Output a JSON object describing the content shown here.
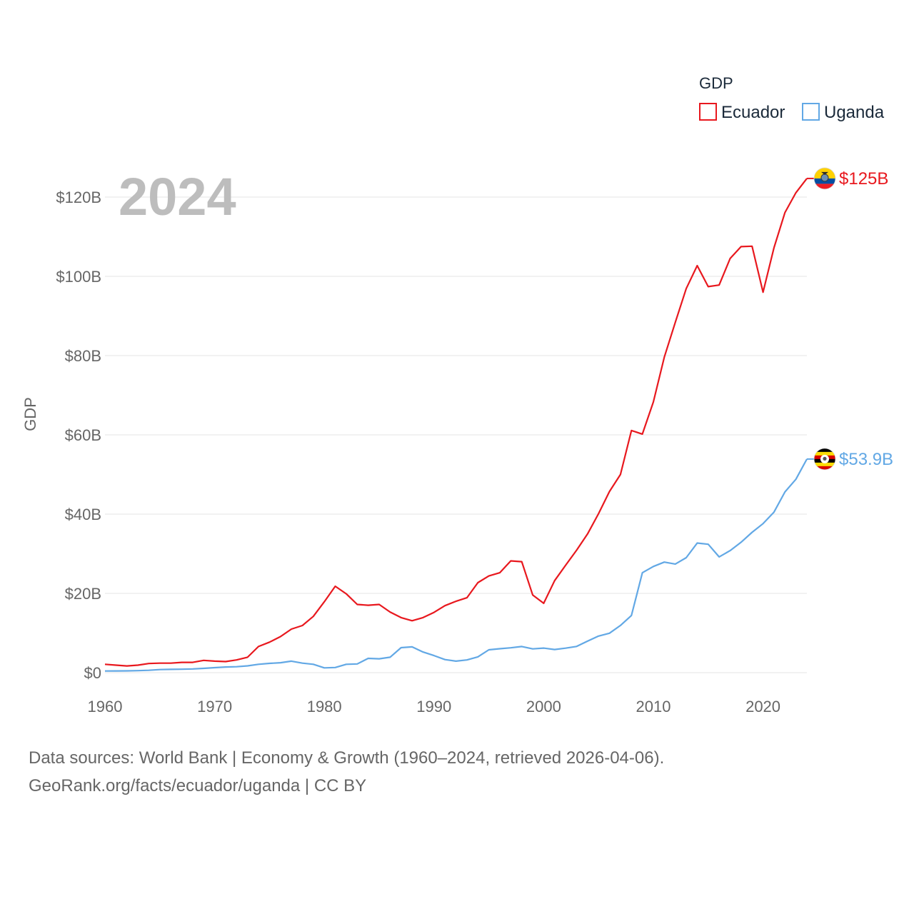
{
  "chart_data": {
    "type": "line",
    "ylabel": "GDP",
    "legend_title": "GDP",
    "current_year": "2024",
    "ylim": [
      0,
      130
    ],
    "y_ticks": [
      {
        "value": 0,
        "label": "$0"
      },
      {
        "value": 20,
        "label": "$20B"
      },
      {
        "value": 40,
        "label": "$40B"
      },
      {
        "value": 60,
        "label": "$60B"
      },
      {
        "value": 80,
        "label": "$80B"
      },
      {
        "value": 100,
        "label": "$100B"
      },
      {
        "value": 120,
        "label": "$120B"
      }
    ],
    "x_ticks": [
      {
        "value": 1960,
        "label": "1960"
      },
      {
        "value": 1970,
        "label": "1970"
      },
      {
        "value": 1980,
        "label": "1980"
      },
      {
        "value": 1990,
        "label": "1990"
      },
      {
        "value": 2000,
        "label": "2000"
      },
      {
        "value": 2010,
        "label": "2010"
      },
      {
        "value": 2020,
        "label": "2020"
      }
    ],
    "x_start": 1960,
    "x_end": 2024,
    "series": [
      {
        "name": "Ecuador",
        "color": "#e8181e",
        "end_label": "$125B",
        "flag": "ecuador-flag-icon",
        "values": [
          2.1,
          1.9,
          1.7,
          1.9,
          2.3,
          2.4,
          2.4,
          2.6,
          2.6,
          3.1,
          2.9,
          2.8,
          3.2,
          3.9,
          6.6,
          7.7,
          9.1,
          11.0,
          11.9,
          14.2,
          17.9,
          21.8,
          19.9,
          17.2,
          17.0,
          17.2,
          15.3,
          13.9,
          13.1,
          13.9,
          15.2,
          16.9,
          18.0,
          18.9,
          22.7,
          24.4,
          25.2,
          28.2,
          28.0,
          19.6,
          17.5,
          23.2,
          27.1,
          30.9,
          35.0,
          40.1,
          45.7,
          50.0,
          61.1,
          60.2,
          68.3,
          79.6,
          88.4,
          96.9,
          102.7,
          97.4,
          97.8,
          104.5,
          107.5,
          107.6,
          96.0,
          107.2,
          116.1,
          121.1,
          124.7
        ]
      },
      {
        "name": "Uganda",
        "color": "#62a8e5",
        "end_label": "$53.9B",
        "flag": "uganda-flag-icon",
        "values": [
          0.42,
          0.44,
          0.45,
          0.51,
          0.59,
          0.77,
          0.82,
          0.87,
          0.93,
          1.08,
          1.26,
          1.42,
          1.49,
          1.71,
          2.1,
          2.35,
          2.5,
          2.9,
          2.4,
          2.1,
          1.2,
          1.3,
          2.1,
          2.2,
          3.6,
          3.5,
          3.9,
          6.3,
          6.5,
          5.2,
          4.3,
          3.3,
          2.9,
          3.2,
          3.99,
          5.76,
          6.04,
          6.27,
          6.6,
          6.0,
          6.19,
          5.84,
          6.18,
          6.61,
          7.94,
          9.23,
          9.94,
          11.91,
          14.44,
          25.2,
          26.8,
          27.9,
          27.4,
          29.0,
          32.7,
          32.4,
          29.2,
          30.8,
          32.9,
          35.4,
          37.6,
          40.5,
          45.6,
          48.8,
          53.9
        ]
      }
    ]
  },
  "footer": {
    "line1": "Data sources: World Bank | Economy & Growth (1960–2024, retrieved 2026-04-06).",
    "line2": "GeoRank.org/facts/ecuador/uganda | CC BY"
  }
}
